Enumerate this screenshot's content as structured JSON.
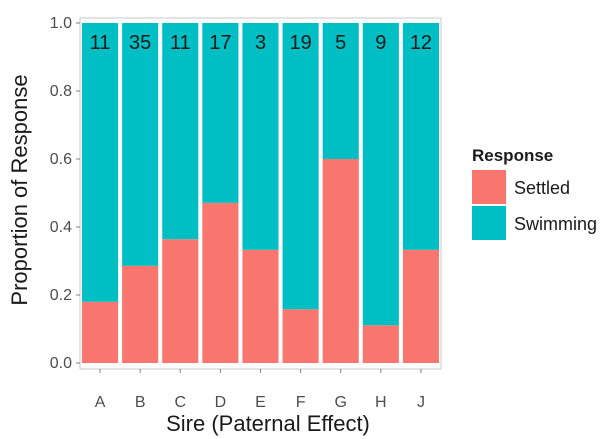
{
  "chart_data": {
    "type": "bar",
    "stacked": true,
    "categories": [
      "A",
      "B",
      "C",
      "D",
      "E",
      "F",
      "G",
      "H",
      "J"
    ],
    "counts": [
      "11",
      "35",
      "11",
      "17",
      "3",
      "19",
      "5",
      "9",
      "12"
    ],
    "series": [
      {
        "name": "Settled",
        "color": "#f8766d",
        "values": [
          0.18,
          0.286,
          0.364,
          0.471,
          0.333,
          0.158,
          0.6,
          0.111,
          0.333
        ]
      },
      {
        "name": "Swimming",
        "color": "#00bfc4",
        "values": [
          0.82,
          0.714,
          0.636,
          0.529,
          0.667,
          0.842,
          0.4,
          0.889,
          0.667
        ]
      }
    ],
    "xlabel": "Sire (Paternal Effect)",
    "ylabel": "Proportion of Response",
    "ylim": [
      0,
      1
    ],
    "yticks": [
      "0.0",
      "0.2",
      "0.4",
      "0.6",
      "0.8",
      "1.0"
    ],
    "legend": {
      "title": "Response",
      "placement": "right"
    },
    "grid": false
  }
}
